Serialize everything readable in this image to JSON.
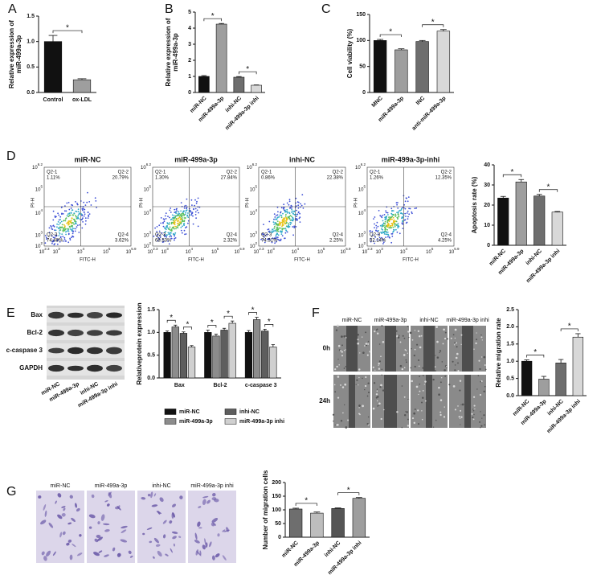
{
  "panel_labels": [
    "A",
    "B",
    "C",
    "D",
    "E",
    "F",
    "G"
  ],
  "flow_cytometry": {
    "x_label": "FITC-H",
    "y_label": "PI-H",
    "tick_base": "10",
    "x_tick_exponents": [
      "2.3",
      "3",
      "4",
      "5",
      "5.9"
    ],
    "y_tick_exponents": [
      "2",
      "3",
      "4",
      "5",
      "6.2"
    ],
    "quadrant_names": [
      "Q2-1",
      "Q2-2",
      "Q2-3",
      "Q2-4"
    ],
    "plots": [
      {
        "title": "miR-NC",
        "quadrants": [
          "1.11%",
          "20.79%",
          "74.48%",
          "3.62%"
        ]
      },
      {
        "title": "miR-499a-3p",
        "quadrants": [
          "1.30%",
          "27.84%",
          "68.53%",
          "2.32%"
        ]
      },
      {
        "title": "inhi-NC",
        "quadrants": [
          "0.86%",
          "22.38%",
          "74.51%",
          "2.25%"
        ]
      },
      {
        "title": "miR-499a-3p-inhi",
        "quadrants": [
          "1.26%",
          "12.35%",
          "82.14%",
          "4.25%"
        ]
      }
    ]
  },
  "western_blot": {
    "proteins": [
      "Bax",
      "Bcl-2",
      "c-caspase 3",
      "GAPDH"
    ],
    "lanes": [
      "miR-NC",
      "miR-499a-3p",
      "inhi-NC",
      "miR-499a-3p inhi"
    ]
  },
  "wound_healing": {
    "groups": [
      "miR-NC",
      "miR-499a-3p",
      "inhi-NC",
      "miR-499a-3p inhi"
    ],
    "times": [
      "0h",
      "24h"
    ]
  },
  "transwell": {
    "groups": [
      "miR-NC",
      "miR-499a-3p",
      "inhi-NC",
      "miR-499a-3p inhi"
    ]
  },
  "chart_data": [
    {
      "type": "bar",
      "y_label": [
        "Relative expression of",
        "miR-499a-3p"
      ],
      "categories": [
        "Control",
        "ox-LDL"
      ],
      "values": [
        1.0,
        0.25
      ],
      "errors": [
        0.12,
        0.02
      ],
      "colors": [
        "#111111",
        "#9e9e9e"
      ],
      "ylim": [
        0,
        1.5
      ],
      "yticks": [
        {
          "value": 0,
          "label": "0.0"
        },
        0.5,
        {
          "value": 1,
          "label": "1.0"
        },
        1.5
      ],
      "annotations": [
        "*"
      ]
    },
    {
      "type": "bar",
      "y_label": [
        "Relative expression of",
        "miR-499a-3p"
      ],
      "categories": [
        "miR-NC",
        "miR-499a-3p",
        "inhi-NC",
        "miR-499a-3p inhi"
      ],
      "values": [
        1.0,
        4.25,
        0.95,
        0.45
      ],
      "errors": [
        0.05,
        0.04,
        0.04,
        0.02
      ],
      "colors": [
        "#111111",
        "#9e9e9e",
        "#6e6e6e",
        "#d8d8d8"
      ],
      "ylim": [
        0,
        5
      ],
      "yticks": [
        0,
        1,
        2,
        3,
        4,
        5
      ],
      "annotations": [
        "*",
        "*"
      ]
    },
    {
      "type": "bar",
      "y_label": [
        "Cell viability (%)"
      ],
      "categories": [
        "MNC",
        "miR-499a-3p",
        "INC",
        "anti-miR-499a-3p"
      ],
      "values": [
        100,
        82,
        98,
        118
      ],
      "errors": [
        2,
        2,
        2,
        3
      ],
      "colors": [
        "#111111",
        "#9e9e9e",
        "#6e6e6e",
        "#d8d8d8"
      ],
      "ylim": [
        0,
        150
      ],
      "yticks": [
        0,
        50,
        100,
        150
      ],
      "annotations": [
        "*",
        "*"
      ]
    },
    {
      "type": "bar",
      "y_label": [
        "Apoptosis rate (%)"
      ],
      "categories": [
        "miR-NC",
        "miR-499a-3p",
        "inhi-NC",
        "miR-499a-3p inhi"
      ],
      "values": [
        23.5,
        31.5,
        24.5,
        16.5
      ],
      "errors": [
        0.8,
        1.2,
        0.8,
        0.3
      ],
      "colors": [
        "#111111",
        "#9e9e9e",
        "#6e6e6e",
        "#d8d8d8"
      ],
      "ylim": [
        0,
        40
      ],
      "yticks": [
        0,
        10,
        20,
        30,
        40
      ],
      "annotations": [
        "*",
        "*"
      ]
    },
    {
      "type": "grouped_bar",
      "y_label": [
        "Relativeprotein expression"
      ],
      "categories": [
        "Bax",
        "Bcl-2",
        "c-caspase 3"
      ],
      "series": [
        {
          "name": "miR-NC",
          "color": "#111111",
          "values": [
            1.0,
            1.0,
            1.0
          ],
          "errors": [
            0.03,
            0.05,
            0.04
          ]
        },
        {
          "name": "miR-499a-3p",
          "color": "#8c8c8c",
          "values": [
            1.12,
            0.92,
            1.28
          ],
          "errors": [
            0.04,
            0.04,
            0.05
          ]
        },
        {
          "name": "inhi-NC",
          "color": "#5e5e5e",
          "values": [
            0.98,
            1.05,
            1.03
          ],
          "errors": [
            0.03,
            0.04,
            0.04
          ]
        },
        {
          "name": "miR-499a-3p inhi",
          "color": "#d0d0d0",
          "values": [
            0.68,
            1.2,
            0.68
          ],
          "errors": [
            0.03,
            0.05,
            0.05
          ]
        }
      ],
      "ylim": [
        0,
        1.5
      ],
      "yticks": [
        {
          "value": 0,
          "label": "0.0"
        },
        0.5,
        {
          "value": 1,
          "label": "1.0"
        },
        1.5
      ],
      "annotations": [
        "*",
        "*",
        "*",
        "*",
        "*",
        "*"
      ]
    },
    {
      "type": "bar",
      "y_label": [
        "Relative migration rate"
      ],
      "categories": [
        "miR-NC",
        "miR-499a-3p",
        "inhi-NC",
        "miR-499a-3p inhi"
      ],
      "values": [
        1.0,
        0.48,
        0.95,
        1.7
      ],
      "errors": [
        0.04,
        0.08,
        0.1,
        0.1
      ],
      "colors": [
        "#111111",
        "#9e9e9e",
        "#6e6e6e",
        "#d8d8d8"
      ],
      "ylim": [
        0,
        2.5
      ],
      "yticks": [
        {
          "value": 0,
          "label": "0.0"
        },
        0.5,
        {
          "value": 1,
          "label": "1.0"
        },
        1.5,
        {
          "value": 2,
          "label": "2.0"
        },
        2.5
      ],
      "annotations": [
        "*",
        "*"
      ]
    },
    {
      "type": "bar",
      "y_label": [
        "Number of migration cells"
      ],
      "categories": [
        "miR-NC",
        "miR-499a-3p",
        "inhi-NC",
        "miR-499a-3p inhi"
      ],
      "values": [
        103,
        88,
        105,
        142
      ],
      "errors": [
        3,
        4,
        2,
        3
      ],
      "colors": [
        "#6e6e6e",
        "#bdbdbd",
        "#555555",
        "#9e9e9e"
      ],
      "ylim": [
        0,
        200
      ],
      "yticks": [
        0,
        50,
        100,
        150,
        200
      ],
      "annotations": [
        "*",
        "*"
      ]
    }
  ]
}
